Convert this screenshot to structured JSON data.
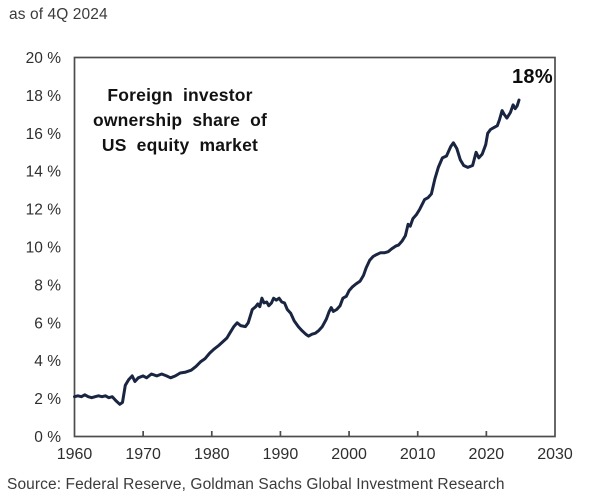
{
  "header": {
    "as_of": "as of 4Q 2024"
  },
  "source": "Source: Federal Reserve, Goldman Sachs Global Investment Research",
  "colors": {
    "line": "#1a2542",
    "axis_border": "#4d4d4d",
    "background": "#ffffff",
    "text": "#3b3b3b"
  },
  "chart_data": {
    "type": "line",
    "title_lines": [
      "Foreign investor",
      "ownership share of",
      "US equity market"
    ],
    "title": "Foreign investor ownership share of US equity market",
    "end_label": "18%",
    "grid": false,
    "legend_position": "none",
    "x_axis": {
      "range": [
        1960,
        2030
      ],
      "tick_values": [
        1960,
        1970,
        1980,
        1990,
        2000,
        2010,
        2020,
        2030
      ],
      "tick_labels": [
        "1960",
        "1970",
        "1980",
        "1990",
        "2000",
        "2010",
        "2020",
        "2030"
      ]
    },
    "y_axis": {
      "range": [
        0,
        20
      ],
      "unit": "%",
      "tick_values": [
        20,
        18,
        16,
        14,
        12,
        10,
        8,
        6,
        4,
        2,
        0
      ],
      "tick_labels": [
        "20 %",
        "18 %",
        "16 %",
        "14 %",
        "12 %",
        "10 %",
        "8 %",
        "6 %",
        "4 %",
        "2 %",
        "0 %"
      ]
    },
    "series": [
      {
        "name": "Foreign investor ownership share of US equity market",
        "color": "#1a2542",
        "points": [
          [
            1960,
            2.1
          ],
          [
            1960.5,
            2.15
          ],
          [
            1961,
            2.1
          ],
          [
            1961.5,
            2.2
          ],
          [
            1962,
            2.1
          ],
          [
            1962.5,
            2.05
          ],
          [
            1963,
            2.1
          ],
          [
            1963.5,
            2.15
          ],
          [
            1964,
            2.1
          ],
          [
            1964.5,
            2.15
          ],
          [
            1965,
            2.05
          ],
          [
            1965.5,
            2.1
          ],
          [
            1966,
            1.9
          ],
          [
            1966.6,
            1.7
          ],
          [
            1967,
            1.8
          ],
          [
            1967.4,
            2.7
          ],
          [
            1967.9,
            3.0
          ],
          [
            1968.4,
            3.2
          ],
          [
            1968.8,
            2.9
          ],
          [
            1969.3,
            3.1
          ],
          [
            1970,
            3.2
          ],
          [
            1970.5,
            3.1
          ],
          [
            1971.2,
            3.3
          ],
          [
            1972,
            3.2
          ],
          [
            1972.7,
            3.3
          ],
          [
            1973.4,
            3.2
          ],
          [
            1974,
            3.1
          ],
          [
            1974.7,
            3.2
          ],
          [
            1975.4,
            3.35
          ],
          [
            1976.2,
            3.4
          ],
          [
            1977,
            3.5
          ],
          [
            1977.7,
            3.7
          ],
          [
            1978.4,
            3.95
          ],
          [
            1979,
            4.1
          ],
          [
            1979.7,
            4.4
          ],
          [
            1980.3,
            4.6
          ],
          [
            1981,
            4.8
          ],
          [
            1981.6,
            5.0
          ],
          [
            1982.2,
            5.2
          ],
          [
            1982.7,
            5.5
          ],
          [
            1983.2,
            5.8
          ],
          [
            1983.7,
            6.0
          ],
          [
            1984.2,
            5.85
          ],
          [
            1984.9,
            5.8
          ],
          [
            1985.3,
            6.0
          ],
          [
            1985.9,
            6.7
          ],
          [
            1986.4,
            6.85
          ],
          [
            1986.7,
            7.0
          ],
          [
            1987,
            6.85
          ],
          [
            1987.3,
            7.3
          ],
          [
            1987.6,
            7.05
          ],
          [
            1988,
            7.1
          ],
          [
            1988.3,
            6.9
          ],
          [
            1988.7,
            7.05
          ],
          [
            1989,
            7.3
          ],
          [
            1989.4,
            7.2
          ],
          [
            1989.8,
            7.3
          ],
          [
            1990.2,
            7.1
          ],
          [
            1990.6,
            7.05
          ],
          [
            1991,
            6.7
          ],
          [
            1991.5,
            6.5
          ],
          [
            1992,
            6.1
          ],
          [
            1992.6,
            5.8
          ],
          [
            1993.1,
            5.6
          ],
          [
            1993.7,
            5.4
          ],
          [
            1994.1,
            5.3
          ],
          [
            1994.6,
            5.4
          ],
          [
            1995.1,
            5.45
          ],
          [
            1995.6,
            5.6
          ],
          [
            1996.1,
            5.8
          ],
          [
            1996.7,
            6.2
          ],
          [
            1997.1,
            6.6
          ],
          [
            1997.4,
            6.8
          ],
          [
            1997.7,
            6.6
          ],
          [
            1998.2,
            6.7
          ],
          [
            1998.7,
            6.9
          ],
          [
            1999.1,
            7.3
          ],
          [
            1999.6,
            7.4
          ],
          [
            2000,
            7.7
          ],
          [
            2000.5,
            7.9
          ],
          [
            2001,
            8.05
          ],
          [
            2001.6,
            8.2
          ],
          [
            2002.1,
            8.5
          ],
          [
            2002.5,
            8.9
          ],
          [
            2003,
            9.3
          ],
          [
            2003.5,
            9.5
          ],
          [
            2004,
            9.6
          ],
          [
            2004.6,
            9.7
          ],
          [
            2005.2,
            9.7
          ],
          [
            2005.7,
            9.75
          ],
          [
            2006.2,
            9.9
          ],
          [
            2006.8,
            10.05
          ],
          [
            2007.2,
            10.1
          ],
          [
            2007.7,
            10.3
          ],
          [
            2008.2,
            10.6
          ],
          [
            2008.6,
            11.2
          ],
          [
            2008.9,
            11.1
          ],
          [
            2009.3,
            11.5
          ],
          [
            2009.8,
            11.7
          ],
          [
            2010.3,
            12.0
          ],
          [
            2011,
            12.5
          ],
          [
            2011.5,
            12.6
          ],
          [
            2012,
            12.8
          ],
          [
            2012.5,
            13.6
          ],
          [
            2013,
            14.2
          ],
          [
            2013.6,
            14.7
          ],
          [
            2014.2,
            14.8
          ],
          [
            2014.8,
            15.3
          ],
          [
            2015.2,
            15.5
          ],
          [
            2015.7,
            15.2
          ],
          [
            2016.2,
            14.6
          ],
          [
            2016.7,
            14.3
          ],
          [
            2017.3,
            14.2
          ],
          [
            2018,
            14.3
          ],
          [
            2018.5,
            15.0
          ],
          [
            2018.9,
            14.7
          ],
          [
            2019.4,
            14.9
          ],
          [
            2019.9,
            15.4
          ],
          [
            2020.2,
            16.0
          ],
          [
            2020.6,
            16.2
          ],
          [
            2021.1,
            16.3
          ],
          [
            2021.6,
            16.4
          ],
          [
            2021.9,
            16.7
          ],
          [
            2022.3,
            17.2
          ],
          [
            2022.6,
            17.0
          ],
          [
            2023,
            16.8
          ],
          [
            2023.5,
            17.1
          ],
          [
            2023.9,
            17.5
          ],
          [
            2024.2,
            17.3
          ],
          [
            2024.5,
            17.45
          ],
          [
            2024.75,
            17.75
          ]
        ]
      }
    ]
  }
}
